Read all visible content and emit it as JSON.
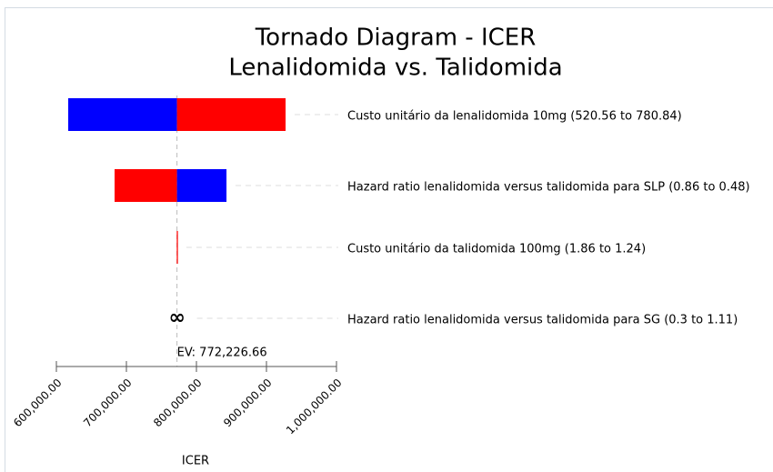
{
  "chart_data": {
    "type": "tornado",
    "title": [
      "Tornado Diagram - ICER",
      "Lenalidomida vs. Talidomida"
    ],
    "xlabel": "ICER",
    "categories": [
      "Custo unitário da lenalidomida 10mg (520.56 to 780.84)",
      "Hazard ratio lenalidomida versus talidomida para SLP (0.86 to 0.48)",
      "Custo unitário da talidomida 100mg (1.86 to 1.24)",
      "Hazard ratio lenalidomida versus talidomida para SG (0.3 to 1.11)"
    ],
    "low": [
      616900,
      683100,
      771900,
      null
    ],
    "high": [
      927300,
      842900,
      772600,
      null
    ],
    "low_colors": [
      "#0000ff",
      "#ff0000",
      "#ff0000",
      null
    ],
    "high_colors": [
      "#ff0000",
      "#0000ff",
      "#ff0000",
      null
    ],
    "value_labels": [
      null,
      null,
      null,
      "∞"
    ],
    "ev": 772226.66,
    "ev_label": "EV: 772,226.66",
    "xlim": [
      600000,
      1000000
    ],
    "xticks": [
      {
        "value": 600000,
        "label": "600,000.00"
      },
      {
        "value": 700000,
        "label": "700,000.00"
      },
      {
        "value": 800000,
        "label": "800,000.00"
      },
      {
        "value": 900000,
        "label": "900,000.00"
      },
      {
        "value": 1000000,
        "label": "1,000,000.00"
      }
    ]
  }
}
